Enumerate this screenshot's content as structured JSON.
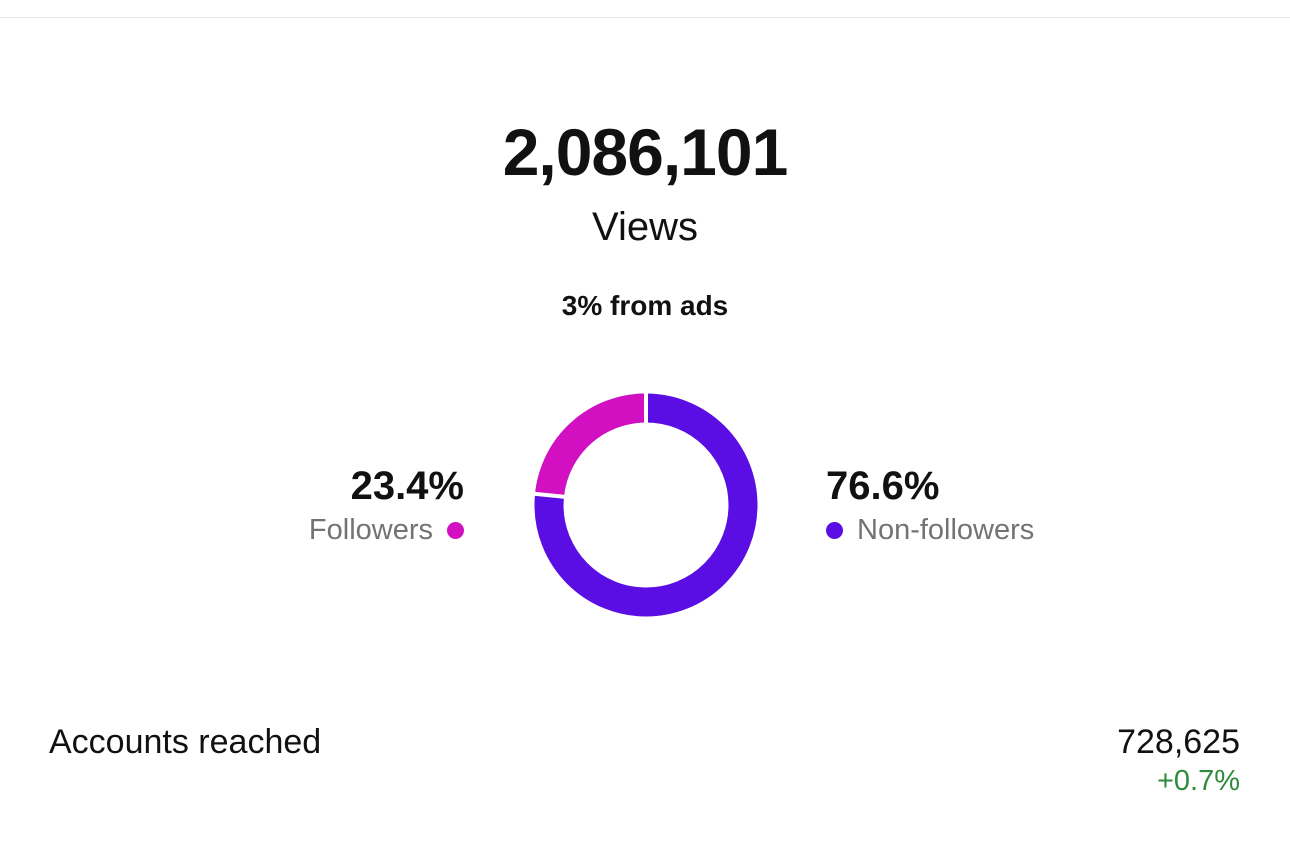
{
  "views": {
    "count": "2,086,101",
    "label": "Views",
    "ads_note": "3% from ads"
  },
  "audience": {
    "followers": {
      "percent_label": "23.4%",
      "name": "Followers",
      "value": 23.4,
      "color": "#d30fc2"
    },
    "non_followers": {
      "percent_label": "76.6%",
      "name": "Non-followers",
      "value": 76.6,
      "color": "#5b0ee3"
    }
  },
  "accounts_reached": {
    "label": "Accounts reached",
    "value": "728,625",
    "change": "+0.7%",
    "change_color": "#2e8b3e"
  }
}
